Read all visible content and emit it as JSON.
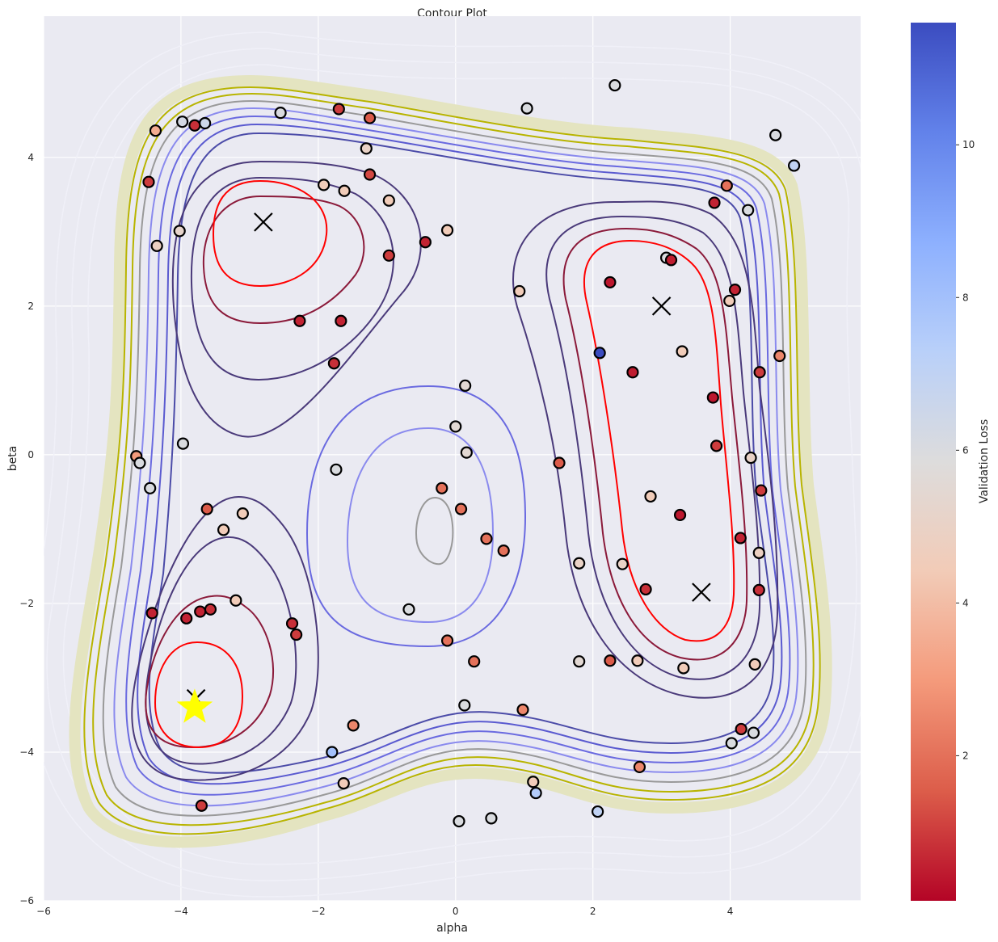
{
  "chart_data": {
    "type": "scatter",
    "subtype": "contour",
    "title": "Contour Plot",
    "xlabel": "alpha",
    "ylabel": "beta",
    "xlim": [
      -6,
      5.9
    ],
    "ylim": [
      -6,
      5.9
    ],
    "xticks": [
      -6,
      -4,
      -2,
      0,
      2,
      4
    ],
    "yticks": [
      -6,
      -4,
      -2,
      0,
      2,
      4
    ],
    "xtick_labels": [
      "−6",
      "−4",
      "−2",
      "0",
      "2",
      "4"
    ],
    "ytick_labels": [
      "−6",
      "−4",
      "−2",
      "0",
      "2",
      "4"
    ],
    "grid": true,
    "background": "#eaeaf2",
    "colorbar": {
      "label": "Validation Loss",
      "colormap": "coolwarm_r",
      "range": [
        0.1,
        11.6
      ],
      "ticks": [
        2,
        4,
        6,
        8,
        10
      ],
      "tick_labels": [
        "2",
        "4",
        "6",
        "8",
        "10"
      ],
      "colors": [
        "#b40426",
        "#dc5d4a",
        "#f49a7b",
        "#f2cbb7",
        "#dddcdc",
        "#b9d0f9",
        "#8db0fe",
        "#6282ea",
        "#3b4cc0"
      ]
    },
    "contour_colors": [
      "#ff0000",
      "#8b1a3a",
      "#4a3a7a",
      "#4b4ba8",
      "#6a6ae0",
      "#8a8aee",
      "#999999",
      "#b8b400",
      "#d2d08a",
      "#e4e4c0",
      "#f0f0f8"
    ],
    "minima": [
      {
        "x": -2.8,
        "y": 3.13,
        "marker": "x"
      },
      {
        "x": 3.0,
        "y": 2.0,
        "marker": "x"
      },
      {
        "x": 3.58,
        "y": -1.85,
        "marker": "x"
      },
      {
        "x": -3.78,
        "y": -3.28,
        "marker": "x"
      }
    ],
    "best_point": {
      "x": -3.8,
      "y": -3.4,
      "marker": "star",
      "color": "#ffff00"
    },
    "points": [
      {
        "x": -4.37,
        "y": 4.36,
        "loss": 3.5
      },
      {
        "x": -3.98,
        "y": 4.48,
        "loss": 6.2
      },
      {
        "x": -3.8,
        "y": 4.43,
        "loss": 0.8
      },
      {
        "x": -3.65,
        "y": 4.46,
        "loss": 6.5
      },
      {
        "x": -2.55,
        "y": 4.6,
        "loss": 6.0
      },
      {
        "x": -1.7,
        "y": 4.65,
        "loss": 1.0
      },
      {
        "x": -1.25,
        "y": 4.53,
        "loss": 1.5
      },
      {
        "x": -1.3,
        "y": 4.12,
        "loss": 5.0
      },
      {
        "x": -1.25,
        "y": 3.77,
        "loss": 1.2
      },
      {
        "x": -4.47,
        "y": 3.67,
        "loss": 1.0
      },
      {
        "x": -4.02,
        "y": 3.01,
        "loss": 5.2
      },
      {
        "x": -4.35,
        "y": 2.81,
        "loss": 4.8
      },
      {
        "x": -1.92,
        "y": 3.63,
        "loss": 4.5
      },
      {
        "x": -1.62,
        "y": 3.55,
        "loss": 4.5
      },
      {
        "x": -0.97,
        "y": 3.42,
        "loss": 4.5
      },
      {
        "x": -0.97,
        "y": 2.68,
        "loss": 1.0
      },
      {
        "x": -0.44,
        "y": 2.86,
        "loss": 0.6
      },
      {
        "x": -0.12,
        "y": 3.02,
        "loss": 4.5
      },
      {
        "x": -2.27,
        "y": 1.8,
        "loss": 0.6
      },
      {
        "x": -1.67,
        "y": 1.8,
        "loss": 0.6
      },
      {
        "x": -1.77,
        "y": 1.23,
        "loss": 0.8
      },
      {
        "x": 1.04,
        "y": 4.66,
        "loss": 6.0
      },
      {
        "x": 2.32,
        "y": 4.97,
        "loss": 6.0
      },
      {
        "x": 4.66,
        "y": 4.3,
        "loss": 6.0
      },
      {
        "x": 4.93,
        "y": 3.89,
        "loss": 7.0
      },
      {
        "x": 3.95,
        "y": 3.62,
        "loss": 2.0
      },
      {
        "x": 3.77,
        "y": 3.39,
        "loss": 0.6
      },
      {
        "x": 4.26,
        "y": 3.29,
        "loss": 6.0
      },
      {
        "x": 3.07,
        "y": 2.65,
        "loss": 6.0
      },
      {
        "x": 3.14,
        "y": 2.62,
        "loss": 0.5
      },
      {
        "x": 2.25,
        "y": 2.32,
        "loss": 0.4
      },
      {
        "x": 0.93,
        "y": 2.2,
        "loss": 4.5
      },
      {
        "x": 4.07,
        "y": 2.22,
        "loss": 0.6
      },
      {
        "x": 3.99,
        "y": 2.07,
        "loss": 4.5
      },
      {
        "x": 2.1,
        "y": 1.37,
        "loss": 11.6
      },
      {
        "x": 3.3,
        "y": 1.39,
        "loss": 4.5
      },
      {
        "x": 4.72,
        "y": 1.33,
        "loss": 2.5
      },
      {
        "x": 2.58,
        "y": 1.11,
        "loss": 0.5
      },
      {
        "x": 4.43,
        "y": 1.11,
        "loss": 1.0
      },
      {
        "x": 0.14,
        "y": 0.93,
        "loss": 5.5
      },
      {
        "x": 3.75,
        "y": 0.77,
        "loss": 0.4
      },
      {
        "x": 0.0,
        "y": 0.38,
        "loss": 5.5
      },
      {
        "x": 3.8,
        "y": 0.12,
        "loss": 1.0
      },
      {
        "x": 0.16,
        "y": 0.03,
        "loss": 5.5
      },
      {
        "x": 4.3,
        "y": -0.04,
        "loss": 5.0
      },
      {
        "x": -4.65,
        "y": -0.02,
        "loss": 3.0
      },
      {
        "x": -4.6,
        "y": -0.11,
        "loss": 6.0
      },
      {
        "x": -3.97,
        "y": 0.15,
        "loss": 6.0
      },
      {
        "x": -1.74,
        "y": -0.2,
        "loss": 6.0
      },
      {
        "x": 1.51,
        "y": -0.11,
        "loss": 1.5
      },
      {
        "x": -4.45,
        "y": -0.45,
        "loss": 6.0
      },
      {
        "x": -0.2,
        "y": -0.45,
        "loss": 2.0
      },
      {
        "x": 4.45,
        "y": -0.48,
        "loss": 1.0
      },
      {
        "x": 2.84,
        "y": -0.56,
        "loss": 4.5
      },
      {
        "x": 3.27,
        "y": -0.81,
        "loss": 0.4
      },
      {
        "x": -3.62,
        "y": -0.73,
        "loss": 1.5
      },
      {
        "x": -3.1,
        "y": -0.79,
        "loss": 4.5
      },
      {
        "x": 0.08,
        "y": -0.73,
        "loss": 2.0
      },
      {
        "x": -3.38,
        "y": -1.01,
        "loss": 4.5
      },
      {
        "x": 0.45,
        "y": -1.13,
        "loss": 2.0
      },
      {
        "x": 4.15,
        "y": -1.12,
        "loss": 0.6
      },
      {
        "x": 0.7,
        "y": -1.29,
        "loss": 2.0
      },
      {
        "x": 4.42,
        "y": -1.32,
        "loss": 4.8
      },
      {
        "x": 1.8,
        "y": -1.46,
        "loss": 5.0
      },
      {
        "x": 2.43,
        "y": -1.47,
        "loss": 5.0
      },
      {
        "x": 2.77,
        "y": -1.81,
        "loss": 0.8
      },
      {
        "x": 4.42,
        "y": -1.82,
        "loss": 0.8
      },
      {
        "x": -3.2,
        "y": -1.96,
        "loss": 4.5
      },
      {
        "x": -0.68,
        "y": -2.08,
        "loss": 6.0
      },
      {
        "x": -4.42,
        "y": -2.13,
        "loss": 0.6
      },
      {
        "x": -3.92,
        "y": -2.2,
        "loss": 0.6
      },
      {
        "x": -3.72,
        "y": -2.11,
        "loss": 0.6
      },
      {
        "x": -3.57,
        "y": -2.08,
        "loss": 0.8
      },
      {
        "x": -2.38,
        "y": -2.27,
        "loss": 0.8
      },
      {
        "x": -2.32,
        "y": -2.42,
        "loss": 1.0
      },
      {
        "x": -0.12,
        "y": -2.5,
        "loss": 2.0
      },
      {
        "x": 0.27,
        "y": -2.78,
        "loss": 2.0
      },
      {
        "x": 1.8,
        "y": -2.78,
        "loss": 5.5
      },
      {
        "x": 2.25,
        "y": -2.77,
        "loss": 1.5
      },
      {
        "x": 2.65,
        "y": -2.77,
        "loss": 4.5
      },
      {
        "x": 3.32,
        "y": -2.87,
        "loss": 4.5
      },
      {
        "x": 4.36,
        "y": -2.82,
        "loss": 4.5
      },
      {
        "x": 0.13,
        "y": -3.37,
        "loss": 6.0
      },
      {
        "x": 0.98,
        "y": -3.43,
        "loss": 2.5
      },
      {
        "x": -1.49,
        "y": -3.64,
        "loss": 2.5
      },
      {
        "x": 4.16,
        "y": -3.69,
        "loss": 1.0
      },
      {
        "x": 4.34,
        "y": -3.74,
        "loss": 6.0
      },
      {
        "x": 4.02,
        "y": -3.88,
        "loss": 6.0
      },
      {
        "x": -1.8,
        "y": -4.0,
        "loss": 8.0
      },
      {
        "x": 2.68,
        "y": -4.2,
        "loss": 2.5
      },
      {
        "x": -1.63,
        "y": -4.42,
        "loss": 4.5
      },
      {
        "x": 1.13,
        "y": -4.4,
        "loss": 4.5
      },
      {
        "x": 1.17,
        "y": -4.55,
        "loss": 7.5
      },
      {
        "x": -3.7,
        "y": -4.72,
        "loss": 1.0
      },
      {
        "x": 2.07,
        "y": -4.8,
        "loss": 7.0
      },
      {
        "x": 0.05,
        "y": -4.93,
        "loss": 6.0
      },
      {
        "x": 0.52,
        "y": -4.89,
        "loss": 6.0
      }
    ]
  }
}
